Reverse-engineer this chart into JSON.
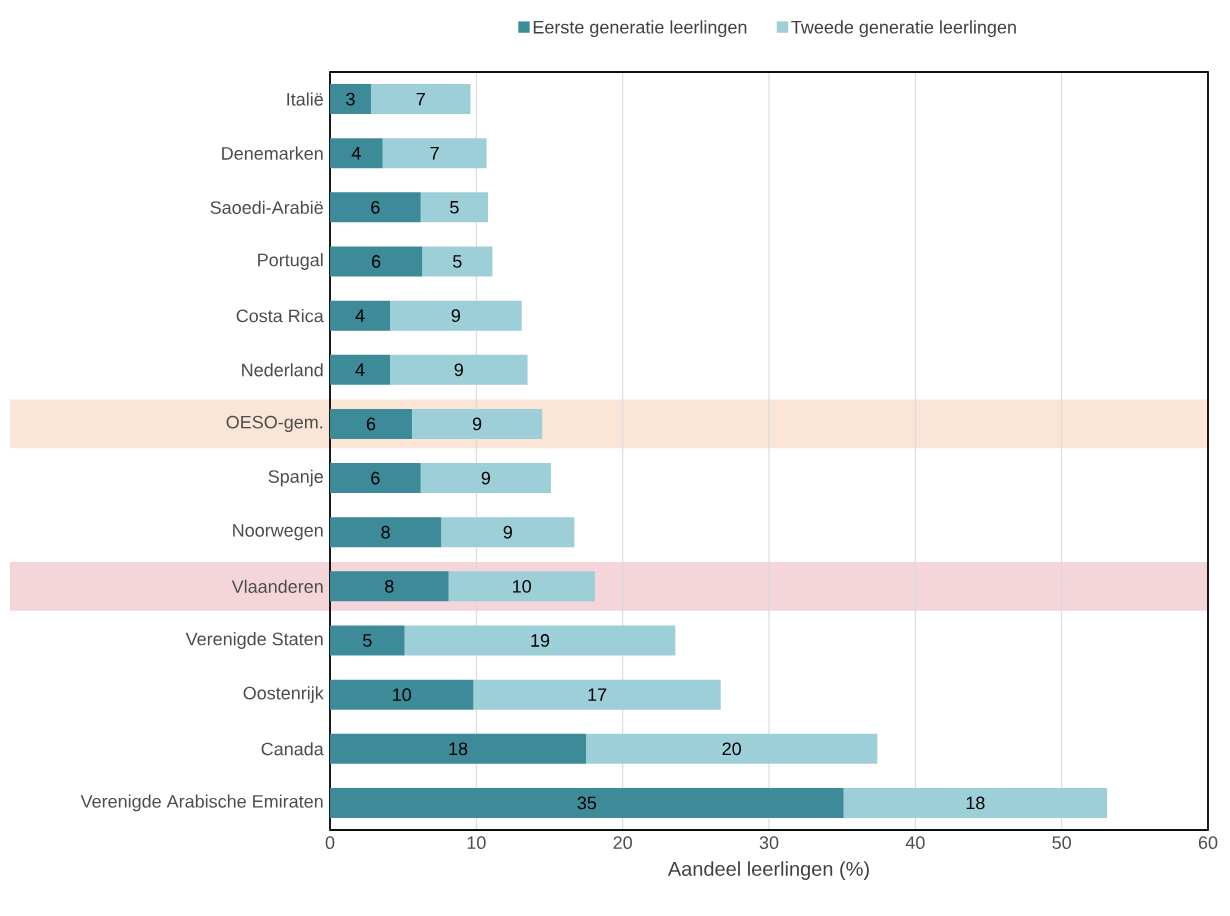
{
  "chart_data": {
    "type": "bar",
    "orientation": "horizontal",
    "stacked": true,
    "xlabel": "Aandeel leerlingen (%)",
    "categories": [
      "Italië",
      "Denemarken",
      "Saoedi-Arabië",
      "Portugal",
      "Costa Rica",
      "Nederland",
      "OESO-gem.",
      "Spanje",
      "Noorwegen",
      "Vlaanderen",
      "Verenigde Staten",
      "Oostenrijk",
      "Canada",
      "Verenigde Arabische Emiraten"
    ],
    "series": [
      {
        "name": "Eerste generatie leerlingen",
        "color": "#3d8b98",
        "values": [
          2.8,
          3.6,
          6.2,
          6.3,
          4.1,
          4.1,
          5.6,
          6.2,
          7.6,
          8.1,
          5.1,
          9.8,
          17.5,
          35.1
        ],
        "value_labels": [
          "3",
          "4",
          "6",
          "6",
          "4",
          "4",
          "6",
          "6",
          "8",
          "8",
          "5",
          "10",
          "18",
          "35"
        ]
      },
      {
        "name": "Tweede generatie leerlingen",
        "color": "#9dcfd8",
        "values": [
          6.8,
          7.1,
          4.6,
          4.8,
          9.0,
          9.4,
          8.9,
          8.9,
          9.1,
          10.0,
          18.5,
          16.9,
          19.9,
          18.0
        ],
        "value_labels": [
          "7",
          "7",
          "5",
          "5",
          "9",
          "9",
          "9",
          "9",
          "9",
          "10",
          "19",
          "17",
          "20",
          "18"
        ]
      }
    ],
    "xlim": [
      0,
      60
    ],
    "xticks": [
      0,
      10,
      20,
      30,
      40,
      50,
      60
    ],
    "grid": "x",
    "legend": "top",
    "bands": [
      {
        "axis": "y",
        "from": "OESO-gem.",
        "to": "OESO-gem.",
        "color": "#fbe5d6"
      },
      {
        "axis": "y",
        "from": "Vlaanderen",
        "to": "Vlaanderen",
        "color": "#f4d5da"
      }
    ]
  }
}
